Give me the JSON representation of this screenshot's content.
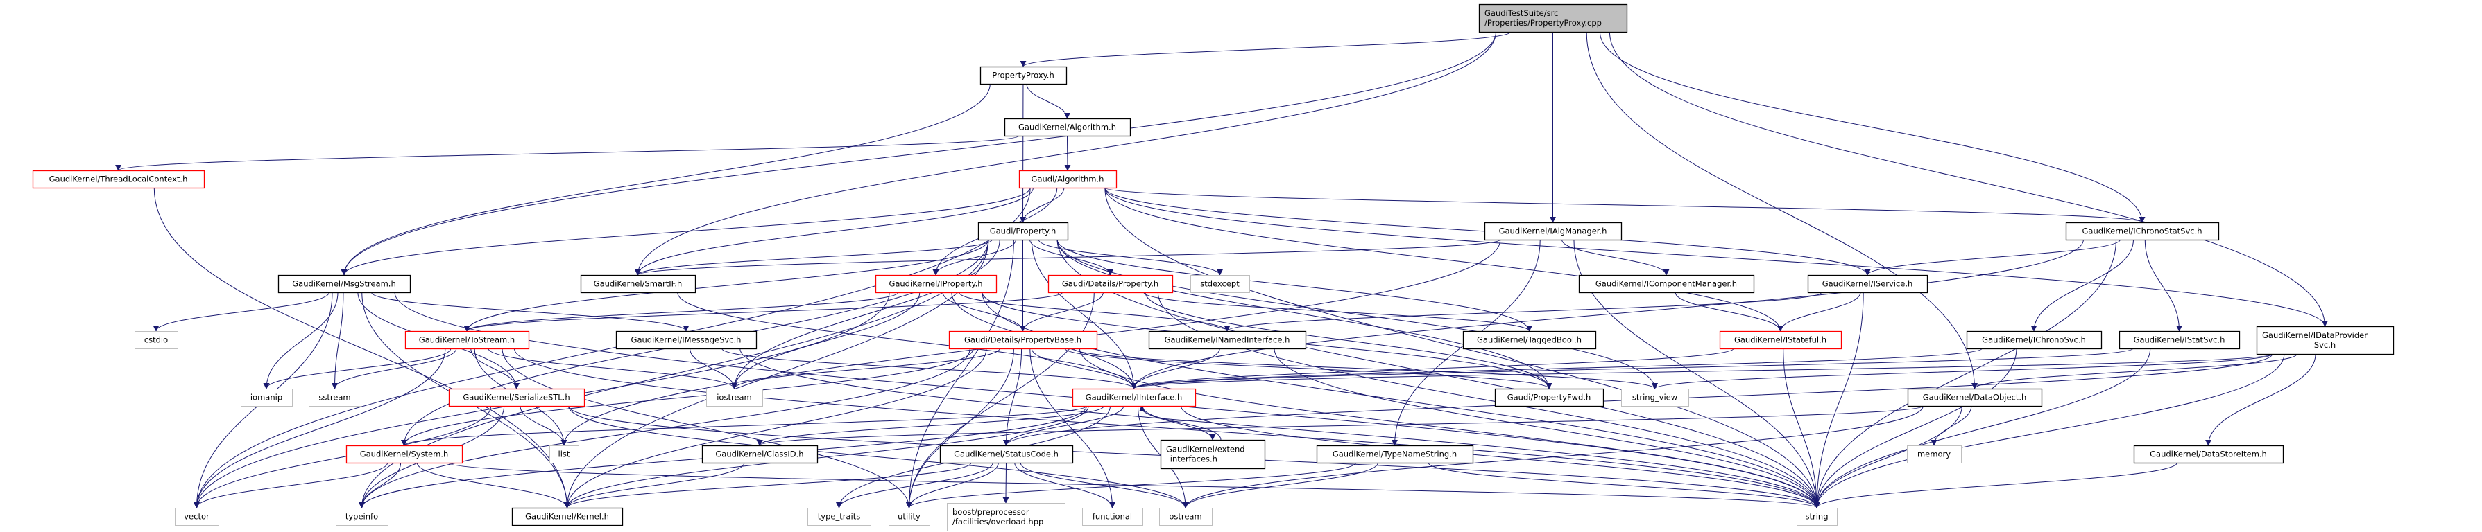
{
  "colors": {
    "edge": "#191970",
    "normal_border": "#000000",
    "red_border": "#ff0000",
    "system_border": "#bfbfbf",
    "root_fill": "#bfbfbf"
  },
  "nodes": [
    {
      "id": "root",
      "label": [
        "GaudiTestSuite/src",
        "/Properties/PropertyProxy.cpp"
      ],
      "kind": "root"
    },
    {
      "id": "pph",
      "label": [
        "PropertyProxy.h"
      ],
      "kind": "normal"
    },
    {
      "id": "gkalg",
      "label": [
        "GaudiKernel/Algorithm.h"
      ],
      "kind": "normal"
    },
    {
      "id": "galg",
      "label": [
        "Gaudi/Algorithm.h"
      ],
      "kind": "red"
    },
    {
      "id": "tlc",
      "label": [
        "GaudiKernel/ThreadLocalContext.h"
      ],
      "kind": "red"
    },
    {
      "id": "gprop",
      "label": [
        "Gaudi/Property.h"
      ],
      "kind": "normal"
    },
    {
      "id": "ialgm",
      "label": [
        "GaudiKernel/IAlgManager.h"
      ],
      "kind": "normal"
    },
    {
      "id": "icss",
      "label": [
        "GaudiKernel/IChronoStatSvc.h"
      ],
      "kind": "normal"
    },
    {
      "id": "msg",
      "label": [
        "GaudiKernel/MsgStream.h"
      ],
      "kind": "normal"
    },
    {
      "id": "smartif",
      "label": [
        "GaudiKernel/SmartIF.h"
      ],
      "kind": "normal"
    },
    {
      "id": "iprop",
      "label": [
        "GaudiKernel/IProperty.h"
      ],
      "kind": "red"
    },
    {
      "id": "dprop",
      "label": [
        "Gaudi/Details/Property.h"
      ],
      "kind": "red"
    },
    {
      "id": "stdexcept",
      "label": [
        "stdexcept"
      ],
      "kind": "system"
    },
    {
      "id": "icm",
      "label": [
        "GaudiKernel/IComponentManager.h"
      ],
      "kind": "normal"
    },
    {
      "id": "isvc",
      "label": [
        "GaudiKernel/IService.h"
      ],
      "kind": "normal"
    },
    {
      "id": "cstdio",
      "label": [
        "cstdio"
      ],
      "kind": "system"
    },
    {
      "id": "tostream",
      "label": [
        "GaudiKernel/ToStream.h"
      ],
      "kind": "red"
    },
    {
      "id": "imsg",
      "label": [
        "GaudiKernel/IMessageSvc.h"
      ],
      "kind": "normal"
    },
    {
      "id": "pbase",
      "label": [
        "Gaudi/Details/PropertyBase.h"
      ],
      "kind": "red"
    },
    {
      "id": "inamed",
      "label": [
        "GaudiKernel/INamedInterface.h"
      ],
      "kind": "normal"
    },
    {
      "id": "tagged",
      "label": [
        "GaudiKernel/TaggedBool.h"
      ],
      "kind": "normal"
    },
    {
      "id": "istateful",
      "label": [
        "GaudiKernel/IStateful.h"
      ],
      "kind": "red"
    },
    {
      "id": "ichrono",
      "label": [
        "GaudiKernel/IChronoSvc.h"
      ],
      "kind": "normal"
    },
    {
      "id": "istat",
      "label": [
        "GaudiKernel/IStatSvc.h"
      ],
      "kind": "normal"
    },
    {
      "id": "idp",
      "label": [
        "GaudiKernel/IDataProvider",
        "Svc.h"
      ],
      "kind": "normal"
    },
    {
      "id": "iomanip",
      "label": [
        "iomanip"
      ],
      "kind": "system"
    },
    {
      "id": "sstream",
      "label": [
        "sstream"
      ],
      "kind": "system"
    },
    {
      "id": "serial",
      "label": [
        "GaudiKernel/SerializeSTL.h"
      ],
      "kind": "red"
    },
    {
      "id": "iostream",
      "label": [
        "iostream"
      ],
      "kind": "system"
    },
    {
      "id": "iint",
      "label": [
        "GaudiKernel/IInterface.h"
      ],
      "kind": "red"
    },
    {
      "id": "pfwd",
      "label": [
        "Gaudi/PropertyFwd.h"
      ],
      "kind": "normal"
    },
    {
      "id": "sview",
      "label": [
        "string_view"
      ],
      "kind": "system"
    },
    {
      "id": "dobj",
      "label": [
        "GaudiKernel/DataObject.h"
      ],
      "kind": "normal"
    },
    {
      "id": "system",
      "label": [
        "GaudiKernel/System.h"
      ],
      "kind": "red"
    },
    {
      "id": "list",
      "label": [
        "list"
      ],
      "kind": "system"
    },
    {
      "id": "classid",
      "label": [
        "GaudiKernel/ClassID.h"
      ],
      "kind": "normal"
    },
    {
      "id": "statuscode",
      "label": [
        "GaudiKernel/StatusCode.h"
      ],
      "kind": "normal"
    },
    {
      "id": "extend",
      "label": [
        "GaudiKernel/extend",
        "_interfaces.h"
      ],
      "kind": "normal"
    },
    {
      "id": "tns",
      "label": [
        "GaudiKernel/TypeNameString.h"
      ],
      "kind": "normal"
    },
    {
      "id": "memory",
      "label": [
        "memory"
      ],
      "kind": "system"
    },
    {
      "id": "dsi",
      "label": [
        "GaudiKernel/DataStoreItem.h"
      ],
      "kind": "normal"
    },
    {
      "id": "vector",
      "label": [
        "vector"
      ],
      "kind": "system"
    },
    {
      "id": "typeinfo",
      "label": [
        "typeinfo"
      ],
      "kind": "system"
    },
    {
      "id": "kernel",
      "label": [
        "GaudiKernel/Kernel.h"
      ],
      "kind": "normal"
    },
    {
      "id": "typetraits",
      "label": [
        "type_traits"
      ],
      "kind": "system"
    },
    {
      "id": "utility",
      "label": [
        "utility"
      ],
      "kind": "system"
    },
    {
      "id": "boost",
      "label": [
        "boost/preprocessor",
        "/facilities/overload.hpp"
      ],
      "kind": "system"
    },
    {
      "id": "functional",
      "label": [
        "functional"
      ],
      "kind": "system"
    },
    {
      "id": "ostream",
      "label": [
        "ostream"
      ],
      "kind": "system"
    },
    {
      "id": "string",
      "label": [
        "string"
      ],
      "kind": "system"
    }
  ],
  "edges": [
    [
      "root",
      "pph"
    ],
    [
      "root",
      "msg"
    ],
    [
      "root",
      "smartif"
    ],
    [
      "root",
      "ialgm"
    ],
    [
      "root",
      "icss"
    ],
    [
      "root",
      "idp"
    ],
    [
      "root",
      "dobj"
    ],
    [
      "pph",
      "gprop"
    ],
    [
      "pph",
      "gkalg"
    ],
    [
      "pph",
      "msg"
    ],
    [
      "gkalg",
      "galg"
    ],
    [
      "gkalg",
      "tlc"
    ],
    [
      "tlc",
      "kernel"
    ],
    [
      "galg",
      "gprop"
    ],
    [
      "galg",
      "iprop"
    ],
    [
      "galg",
      "icss"
    ],
    [
      "galg",
      "idp"
    ],
    [
      "galg",
      "isvc"
    ],
    [
      "galg",
      "istateful"
    ],
    [
      "galg",
      "vector"
    ],
    [
      "galg",
      "smartif"
    ],
    [
      "galg",
      "string"
    ],
    [
      "galg",
      "msg"
    ],
    [
      "gprop",
      "iprop"
    ],
    [
      "gprop",
      "dprop"
    ],
    [
      "gprop",
      "pbase"
    ],
    [
      "gprop",
      "stdexcept"
    ],
    [
      "gprop",
      "smartif"
    ],
    [
      "gprop",
      "tostream"
    ],
    [
      "gprop",
      "iint"
    ],
    [
      "gprop",
      "tagged"
    ],
    [
      "gprop",
      "pfwd"
    ],
    [
      "gprop",
      "string"
    ],
    [
      "gprop",
      "sview"
    ],
    [
      "gprop",
      "iostream"
    ],
    [
      "gprop",
      "system"
    ],
    [
      "gprop",
      "kernel"
    ],
    [
      "gprop",
      "typeinfo"
    ],
    [
      "gprop",
      "utility"
    ],
    [
      "ialgm",
      "icm"
    ],
    [
      "ialgm",
      "smartif"
    ],
    [
      "ialgm",
      "string"
    ],
    [
      "ialgm",
      "tns"
    ],
    [
      "ialgm",
      "list"
    ],
    [
      "iprop",
      "pbase"
    ],
    [
      "iprop",
      "iint"
    ],
    [
      "iprop",
      "inamed"
    ],
    [
      "iprop",
      "tostream"
    ],
    [
      "iprop",
      "string"
    ],
    [
      "iprop",
      "pfwd"
    ],
    [
      "iprop",
      "iostream"
    ],
    [
      "iprop",
      "vector"
    ],
    [
      "dprop",
      "pbase"
    ],
    [
      "dprop",
      "tostream"
    ],
    [
      "dprop",
      "tagged"
    ],
    [
      "dprop",
      "pfwd"
    ],
    [
      "dprop",
      "string"
    ],
    [
      "dprop",
      "utility"
    ],
    [
      "pbase",
      "iint"
    ],
    [
      "pbase",
      "statuscode"
    ],
    [
      "pbase",
      "utility"
    ],
    [
      "pbase",
      "iostream"
    ],
    [
      "pbase",
      "string"
    ],
    [
      "pbase",
      "sview"
    ],
    [
      "pbase",
      "pfwd"
    ],
    [
      "pbase",
      "system"
    ],
    [
      "pbase",
      "kernel"
    ],
    [
      "pbase",
      "functional"
    ],
    [
      "pbase",
      "typeinfo"
    ],
    [
      "inamed",
      "iint"
    ],
    [
      "inamed",
      "string"
    ],
    [
      "iint",
      "statuscode"
    ],
    [
      "iint",
      "extend"
    ],
    [
      "iint",
      "ostream"
    ],
    [
      "iint",
      "system"
    ],
    [
      "iint",
      "kernel"
    ],
    [
      "iint",
      "classid"
    ],
    [
      "iint",
      "typetraits"
    ],
    [
      "iint",
      "typeinfo"
    ],
    [
      "iint",
      "string"
    ],
    [
      "extend",
      "iint"
    ],
    [
      "statuscode",
      "kernel"
    ],
    [
      "statuscode",
      "utility"
    ],
    [
      "statuscode",
      "boost"
    ],
    [
      "statuscode",
      "functional"
    ],
    [
      "statuscode",
      "ostream"
    ],
    [
      "statuscode",
      "typetraits"
    ],
    [
      "tns",
      "string"
    ],
    [
      "tns",
      "ostream"
    ],
    [
      "tns",
      "utility"
    ],
    [
      "icm",
      "istateful"
    ],
    [
      "isvc",
      "istateful"
    ],
    [
      "isvc",
      "string"
    ],
    [
      "isvc",
      "inamed"
    ],
    [
      "istateful",
      "iint"
    ],
    [
      "istateful",
      "string"
    ],
    [
      "icss",
      "isvc"
    ],
    [
      "icss",
      "ichrono"
    ],
    [
      "icss",
      "istat"
    ],
    [
      "icss",
      "string"
    ],
    [
      "icss",
      "iint"
    ],
    [
      "ichrono",
      "iint"
    ],
    [
      "ichrono",
      "string"
    ],
    [
      "istat",
      "iint"
    ],
    [
      "istat",
      "string"
    ],
    [
      "idp",
      "dobj"
    ],
    [
      "idp",
      "dsi"
    ],
    [
      "idp",
      "string"
    ],
    [
      "idp",
      "iint"
    ],
    [
      "idp",
      "sview"
    ],
    [
      "idp",
      "statuscode"
    ],
    [
      "dobj",
      "memory"
    ],
    [
      "dobj",
      "string"
    ],
    [
      "dobj",
      "classid"
    ],
    [
      "dobj",
      "ostream"
    ],
    [
      "dsi",
      "string"
    ],
    [
      "msg",
      "cstdio"
    ],
    [
      "msg",
      "iomanip"
    ],
    [
      "msg",
      "sstream"
    ],
    [
      "msg",
      "serial"
    ],
    [
      "msg",
      "imsg"
    ],
    [
      "msg",
      "vector"
    ],
    [
      "msg",
      "string"
    ],
    [
      "msg",
      "kernel"
    ],
    [
      "tostream",
      "iomanip"
    ],
    [
      "tostream",
      "sstream"
    ],
    [
      "tostream",
      "serial"
    ],
    [
      "tostream",
      "list"
    ],
    [
      "tostream",
      "iostream"
    ],
    [
      "tostream",
      "vector"
    ],
    [
      "tostream",
      "string"
    ],
    [
      "tostream",
      "utility"
    ],
    [
      "imsg",
      "iostream"
    ],
    [
      "imsg",
      "iint"
    ],
    [
      "imsg",
      "string"
    ],
    [
      "serial",
      "list"
    ],
    [
      "serial",
      "vector"
    ],
    [
      "serial",
      "string"
    ],
    [
      "serial",
      "ostream"
    ],
    [
      "serial",
      "typeinfo"
    ],
    [
      "system",
      "vector"
    ],
    [
      "system",
      "typeinfo"
    ],
    [
      "system",
      "kernel"
    ],
    [
      "system",
      "string"
    ],
    [
      "classid",
      "kernel"
    ],
    [
      "smartif",
      "iint"
    ]
  ]
}
